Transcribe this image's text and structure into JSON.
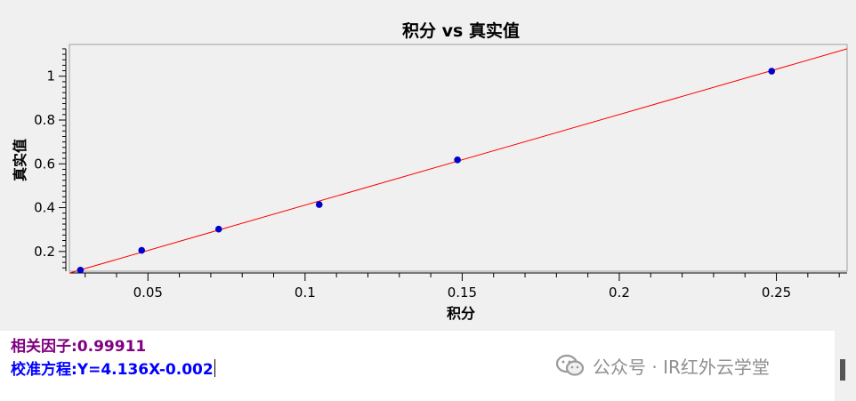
{
  "chart_data": {
    "type": "scatter",
    "title": "积分 vs 真实值",
    "xlabel": "积分",
    "ylabel": "真实值",
    "xlim": [
      0.025,
      0.2725
    ],
    "ylim": [
      0.11,
      1.145
    ],
    "x_ticks": [
      0.05,
      0.1,
      0.15,
      0.2,
      0.25
    ],
    "x_tick_labels": [
      "0.05",
      "0.1",
      "0.15",
      "0.2",
      "0.25"
    ],
    "y_ticks": [
      0.2,
      0.4,
      0.6,
      0.8,
      1.0
    ],
    "y_tick_labels": [
      "0.2",
      "0.4",
      "0.6",
      "0.8",
      "1"
    ],
    "grid": false,
    "legend": "none",
    "series": [
      {
        "points": [
          {
            "x": 0.0285,
            "y": 0.115
          },
          {
            "x": 0.048,
            "y": 0.205
          },
          {
            "x": 0.0725,
            "y": 0.302
          },
          {
            "x": 0.1045,
            "y": 0.414
          },
          {
            "x": 0.1485,
            "y": 0.618
          },
          {
            "x": 0.2485,
            "y": 1.023
          }
        ],
        "color": "#0000cc"
      }
    ],
    "fit_line": {
      "slope": 4.136,
      "intercept": -0.002,
      "x_range": [
        0.025,
        0.2725
      ],
      "color": "#ff0000"
    }
  },
  "results": {
    "correlation": "相关因子:0.99911",
    "equation": "校准方程:Y=4.136X-0.002"
  },
  "watermark": {
    "text": "公众号 · IR红外云学堂",
    "icon": "wechat-icon"
  },
  "colors": {
    "plot_bg": "#f0f0f0",
    "points": "#0000cc",
    "fit_line": "#ff0000",
    "correlation_text": "#800080",
    "equation_text": "#0000ff"
  }
}
